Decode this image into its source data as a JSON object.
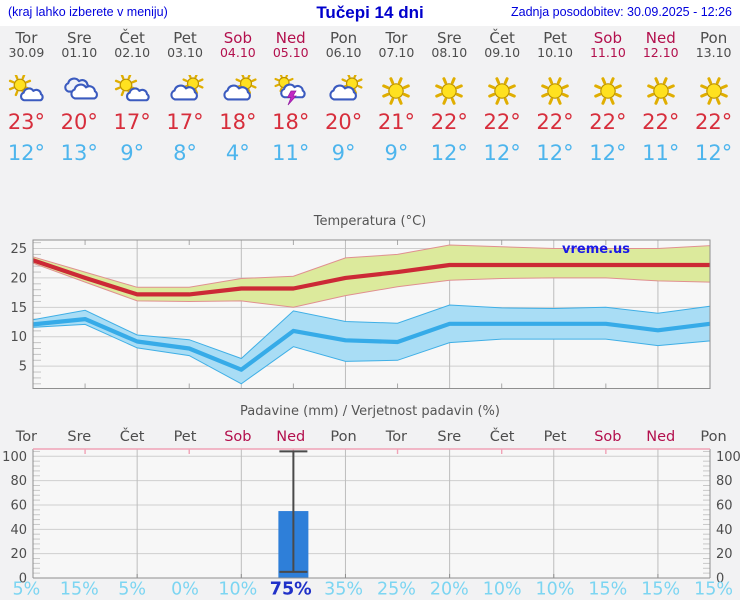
{
  "header": {
    "left_note": "(kraj lahko izberete v meniju)",
    "title": "Tučepi 14 dni",
    "updated": "Zadnja posodobitev: 30.09.2025 - 12:26"
  },
  "days": [
    {
      "name": "Tor",
      "date": "30.09",
      "weekend": false,
      "icon": "mostly-sunny",
      "high": "23°",
      "low": "12°"
    },
    {
      "name": "Sre",
      "date": "01.10",
      "weekend": false,
      "icon": "cloudy",
      "high": "20°",
      "low": "13°"
    },
    {
      "name": "Čet",
      "date": "02.10",
      "weekend": false,
      "icon": "mostly-sunny",
      "high": "17°",
      "low": "9°"
    },
    {
      "name": "Pet",
      "date": "03.10",
      "weekend": false,
      "icon": "cloud-sun",
      "high": "17°",
      "low": "8°"
    },
    {
      "name": "Sob",
      "date": "04.10",
      "weekend": true,
      "icon": "cloud-sun",
      "high": "18°",
      "low": "4°"
    },
    {
      "name": "Ned",
      "date": "05.10",
      "weekend": true,
      "icon": "thunder-sun",
      "high": "18°",
      "low": "11°"
    },
    {
      "name": "Pon",
      "date": "06.10",
      "weekend": false,
      "icon": "cloud-sun",
      "high": "20°",
      "low": "9°"
    },
    {
      "name": "Tor",
      "date": "07.10",
      "weekend": false,
      "icon": "sunny",
      "high": "21°",
      "low": "9°"
    },
    {
      "name": "Sre",
      "date": "08.10",
      "weekend": false,
      "icon": "sunny",
      "high": "22°",
      "low": "12°"
    },
    {
      "name": "Čet",
      "date": "09.10",
      "weekend": false,
      "icon": "sunny",
      "high": "22°",
      "low": "12°"
    },
    {
      "name": "Pet",
      "date": "10.10",
      "weekend": false,
      "icon": "sunny",
      "high": "22°",
      "low": "12°"
    },
    {
      "name": "Sob",
      "date": "11.10",
      "weekend": true,
      "icon": "sunny",
      "high": "22°",
      "low": "12°"
    },
    {
      "name": "Ned",
      "date": "12.10",
      "weekend": true,
      "icon": "sunny",
      "high": "22°",
      "low": "11°"
    },
    {
      "name": "Pon",
      "date": "13.10",
      "weekend": false,
      "icon": "sunny",
      "high": "22°",
      "low": "12°"
    }
  ],
  "chart_data": [
    {
      "type": "line",
      "title": "Temperatura (°C)",
      "watermark": "vreme.us",
      "ylim": [
        1.2,
        26.45
      ],
      "yticks": [
        5,
        10,
        15,
        20,
        25
      ],
      "grid": true,
      "series": [
        {
          "name": "max-temp",
          "color": "#cc2936",
          "band_color": "#dcea9c",
          "band_edge": "#e09090",
          "values": [
            23,
            20,
            17.2,
            17.2,
            18.2,
            18.2,
            20,
            21,
            22.2,
            22.2,
            22.2,
            22.2,
            22.2,
            22.2
          ],
          "band_upper": [
            23.6,
            21,
            18.4,
            18.4,
            19.9,
            20.3,
            23.4,
            24,
            25.6,
            25.3,
            25,
            25,
            25,
            25.5
          ],
          "band_lower": [
            22.5,
            19.3,
            16.1,
            16,
            16.1,
            15,
            17,
            18.5,
            19.6,
            19.9,
            20,
            20,
            19.5,
            19.3
          ]
        },
        {
          "name": "min-temp",
          "color": "#36abe8",
          "band_color": "#a9ddf5",
          "band_edge": "#3fafe6",
          "values": [
            12.1,
            13,
            9.2,
            8,
            4.4,
            11,
            9.4,
            9.1,
            12.2,
            12.2,
            12.2,
            12.2,
            11.1,
            12.2
          ],
          "band_upper": [
            12.9,
            14.5,
            10.3,
            9.5,
            6.3,
            14.4,
            12.6,
            12.3,
            15.4,
            14.9,
            14.8,
            15,
            14,
            15.2
          ],
          "band_lower": [
            11.6,
            12.1,
            8.1,
            6.8,
            2,
            8.3,
            5.8,
            6,
            9,
            9.6,
            9.6,
            9.6,
            8.5,
            9.3
          ]
        }
      ]
    },
    {
      "type": "bar",
      "title": "Padavine (mm) / Verjetnost padavin (%)",
      "categories": [
        "Tor",
        "Sre",
        "Čet",
        "Pet",
        "Sob",
        "Ned",
        "Pon",
        "Tor",
        "Sre",
        "Čet",
        "Pet",
        "Sob",
        "Ned",
        "Pon"
      ],
      "weekend_indices": [
        4,
        5,
        11,
        12
      ],
      "ylim": [
        0,
        106
      ],
      "yticks": [
        0,
        20,
        40,
        60,
        80,
        100
      ],
      "values": [
        0,
        0,
        0,
        0,
        0,
        55,
        0,
        0,
        0,
        0,
        0,
        0,
        0,
        0
      ],
      "whiskers": [
        {
          "index": 5,
          "min": 5,
          "max": 104
        }
      ],
      "probabilities": [
        5,
        15,
        5,
        0,
        10,
        75,
        35,
        25,
        20,
        10,
        10,
        15,
        15,
        15
      ],
      "probability_suffix": "%",
      "highlight_index": 5
    }
  ],
  "colors": {
    "header_blue": "#0000dd",
    "title_blue": "#0000cc",
    "day_gray": "#4d4d4d",
    "weekend_red": "#b3104d",
    "high_red": "#d72e3c",
    "low_blue": "#4db5ed",
    "bar_blue": "#2e7fd9",
    "whisker_gray": "#4a4a4a",
    "prob_cyan": "#7cd5f2",
    "prob_active": "#2031c8",
    "watermark_blue": "#1a1ae6",
    "precip_top_border": "#f0a2b6"
  }
}
